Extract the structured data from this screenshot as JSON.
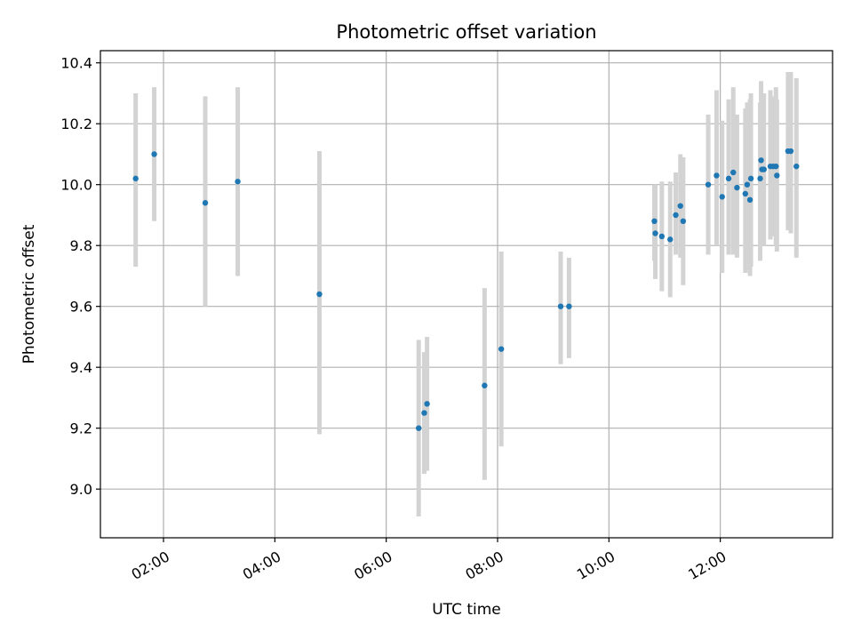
{
  "chart_data": {
    "type": "scatter",
    "title": "Photometric offset variation",
    "xlabel": "UTC time",
    "ylabel": "Photometric offset",
    "x_unit": "UTC time (HH:MM)",
    "xlim": [
      "00:52",
      "14:01"
    ],
    "ylim": [
      8.84,
      10.44
    ],
    "grid": true,
    "x_ticks": [
      "02:00",
      "04:00",
      "06:00",
      "08:00",
      "10:00",
      "12:00"
    ],
    "y_ticks": [
      "9.0",
      "9.2",
      "9.4",
      "9.6",
      "9.8",
      "10.0",
      "10.2",
      "10.4"
    ],
    "colors": {
      "points": "#1f77b4",
      "errorbars": "#d3d3d3",
      "grid": "#b0b0b0",
      "axes": "#000000"
    },
    "points": [
      {
        "time": "01:30",
        "value": 10.02,
        "low": 9.73,
        "high": 10.3
      },
      {
        "time": "01:50",
        "value": 10.1,
        "low": 9.88,
        "high": 10.32
      },
      {
        "time": "02:45",
        "value": 9.94,
        "low": 9.6,
        "high": 10.29
      },
      {
        "time": "03:20",
        "value": 10.01,
        "low": 9.7,
        "high": 10.32
      },
      {
        "time": "04:48",
        "value": 9.64,
        "low": 9.18,
        "high": 10.11
      },
      {
        "time": "06:35",
        "value": 9.2,
        "low": 8.91,
        "high": 9.49
      },
      {
        "time": "06:41",
        "value": 9.25,
        "low": 9.05,
        "high": 9.45
      },
      {
        "time": "06:44",
        "value": 9.28,
        "low": 9.06,
        "high": 9.5
      },
      {
        "time": "07:46",
        "value": 9.34,
        "low": 9.03,
        "high": 9.66
      },
      {
        "time": "08:04",
        "value": 9.46,
        "low": 9.14,
        "high": 9.78
      },
      {
        "time": "09:08",
        "value": 9.6,
        "low": 9.41,
        "high": 9.78
      },
      {
        "time": "09:17",
        "value": 9.6,
        "low": 9.43,
        "high": 9.76
      },
      {
        "time": "10:49",
        "value": 9.88,
        "low": 9.75,
        "high": 10.0
      },
      {
        "time": "10:50",
        "value": 9.84,
        "low": 9.69,
        "high": 10.0
      },
      {
        "time": "10:57",
        "value": 9.83,
        "low": 9.65,
        "high": 10.01
      },
      {
        "time": "11:06",
        "value": 9.82,
        "low": 9.63,
        "high": 10.01
      },
      {
        "time": "11:12",
        "value": 9.9,
        "low": 9.77,
        "high": 10.04
      },
      {
        "time": "11:17",
        "value": 9.93,
        "low": 9.76,
        "high": 10.1
      },
      {
        "time": "11:20",
        "value": 9.88,
        "low": 9.67,
        "high": 10.09
      },
      {
        "time": "11:47",
        "value": 10.0,
        "low": 9.77,
        "high": 10.23
      },
      {
        "time": "11:56",
        "value": 10.03,
        "low": 9.8,
        "high": 10.31
      },
      {
        "time": "12:02",
        "value": 9.96,
        "low": 9.71,
        "high": 10.21
      },
      {
        "time": "12:09",
        "value": 10.02,
        "low": 9.77,
        "high": 10.28
      },
      {
        "time": "12:14",
        "value": 10.04,
        "low": 9.77,
        "high": 10.32
      },
      {
        "time": "12:18",
        "value": 9.99,
        "low": 9.76,
        "high": 10.23
      },
      {
        "time": "12:27",
        "value": 9.97,
        "low": 9.71,
        "high": 10.25
      },
      {
        "time": "12:29",
        "value": 10.0,
        "low": 9.72,
        "high": 10.27
      },
      {
        "time": "12:32",
        "value": 9.95,
        "low": 9.7,
        "high": 10.28
      },
      {
        "time": "12:33",
        "value": 10.02,
        "low": 9.73,
        "high": 10.3
      },
      {
        "time": "12:43",
        "value": 10.02,
        "low": 9.75,
        "high": 10.27
      },
      {
        "time": "12:44",
        "value": 10.08,
        "low": 9.82,
        "high": 10.34
      },
      {
        "time": "12:45",
        "value": 10.05,
        "low": 9.82,
        "high": 10.3
      },
      {
        "time": "12:47",
        "value": 10.05,
        "low": 9.8,
        "high": 10.3
      },
      {
        "time": "12:54",
        "value": 10.06,
        "low": 9.82,
        "high": 10.31
      },
      {
        "time": "12:57",
        "value": 10.06,
        "low": 9.83,
        "high": 10.29
      },
      {
        "time": "13:00",
        "value": 10.06,
        "low": 9.8,
        "high": 10.32
      },
      {
        "time": "13:01",
        "value": 10.03,
        "low": 9.78,
        "high": 10.28
      },
      {
        "time": "13:13",
        "value": 10.11,
        "low": 9.85,
        "high": 10.37
      },
      {
        "time": "13:16",
        "value": 10.11,
        "low": 9.84,
        "high": 10.37
      },
      {
        "time": "13:22",
        "value": 10.06,
        "low": 9.76,
        "high": 10.35
      }
    ]
  }
}
